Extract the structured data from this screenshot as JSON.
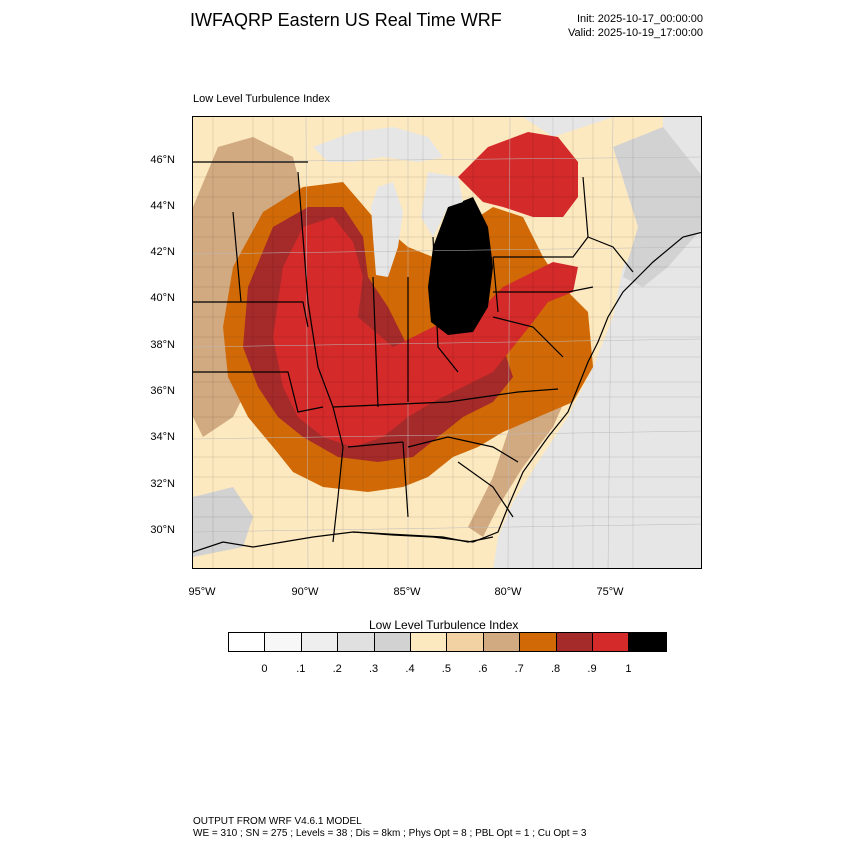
{
  "header": {
    "title": "IWFAQRP Eastern US Real Time WRF",
    "init": "Init: 2025-10-17_00:00:00",
    "valid": "Valid: 2025-10-19_17:00:00"
  },
  "plot": {
    "subtitle": "Low Level Turbulence Index",
    "lat_labels": [
      "46°N",
      "44°N",
      "42°N",
      "40°N",
      "38°N",
      "36°N",
      "34°N",
      "32°N",
      "30°N"
    ],
    "lon_labels": [
      "95°W",
      "90°W",
      "85°W",
      "80°W",
      "75°W"
    ]
  },
  "legend": {
    "title": "Low Level Turbulence Index",
    "colors": [
      "#ffffff",
      "#f7f7f7",
      "#eeeeee",
      "#e0e0e0",
      "#d2d2d2",
      "#fde9bf",
      "#f2d2a2",
      "#d2aa81",
      "#d16a06",
      "#a52a2a",
      "#d42a2a",
      "#000000"
    ],
    "ticks": [
      "0",
      ".1",
      ".2",
      ".3",
      ".4",
      ".5",
      ".6",
      ".7",
      ".8",
      ".9",
      "1"
    ]
  },
  "footer": {
    "line1": "OUTPUT FROM WRF V4.6.1 MODEL",
    "line2": "WE = 310 ; SN = 275 ; Levels = 38 ; Dis = 8km ; Phys Opt = 8 ; PBL Opt = 1 ; Cu Opt = 3"
  },
  "colors": {
    "ocean": "#e4e4e4",
    "land_low": "#fde9bf",
    "tan": "#d2aa81",
    "orange": "#d16a06",
    "dark_red": "#a52a2a",
    "red": "#d42a2a",
    "black": "#000000"
  }
}
